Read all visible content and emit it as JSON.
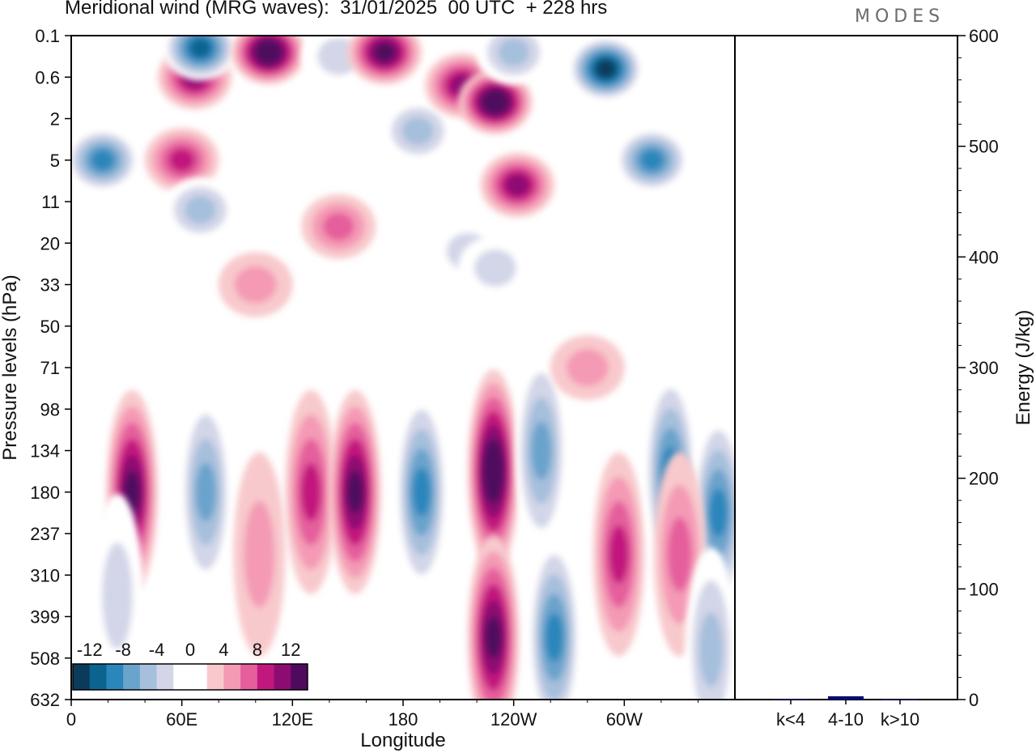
{
  "header": {
    "title": "Meridional wind (MRG waves):  31/01/2025  00 UTC  + 228 hrs",
    "brand": "MODES"
  },
  "chart_data": [
    {
      "type": "heatmap",
      "xlabel": "Longitude",
      "ylabel": "Pressure levels (hPa)",
      "x_tick_labels": [
        "0",
        "60E",
        "120E",
        "180",
        "120W",
        "60W"
      ],
      "y_tick_labels": [
        "0.1",
        "0.6",
        "2",
        "5",
        "11",
        "20",
        "33",
        "50",
        "71",
        "98",
        "134",
        "180",
        "237",
        "310",
        "399",
        "508",
        "632"
      ],
      "colorbar": {
        "labels": [
          "-12",
          "-8",
          "-4",
          "0",
          "4",
          "8",
          "12"
        ],
        "colors": [
          "#0b3b5c",
          "#0d6390",
          "#2a86bb",
          "#6aa3cc",
          "#a6bfdc",
          "#d3d6e8",
          "#ffffff",
          "#ffffff",
          "#f8c9cc",
          "#f49ab5",
          "#e55f9c",
          "#c2187e",
          "#8c0c72",
          "#4f0a5f"
        ]
      },
      "features": [
        {
          "lon": 17,
          "level": 3.0,
          "value": -10
        },
        {
          "lon": 60,
          "level": 3.0,
          "value": 8
        },
        {
          "lon": 70,
          "level": 4.2,
          "value": -6
        },
        {
          "lon": 67,
          "level": 1.0,
          "value": 9
        },
        {
          "lon": 70,
          "level": 0.3,
          "value": -12
        },
        {
          "lon": 107,
          "level": 0.4,
          "value": 14
        },
        {
          "lon": 145,
          "level": 0.5,
          "value": -4
        },
        {
          "lon": 170,
          "level": 0.4,
          "value": 11
        },
        {
          "lon": 188,
          "level": 2.3,
          "value": -5
        },
        {
          "lon": 212,
          "level": 1.2,
          "value": 9
        },
        {
          "lon": 230,
          "level": 1.6,
          "value": 14
        },
        {
          "lon": 240,
          "level": 0.4,
          "value": -6
        },
        {
          "lon": 242,
          "level": 3.6,
          "value": 10
        },
        {
          "lon": 290,
          "level": 0.8,
          "value": -14
        },
        {
          "lon": 315,
          "level": 3.0,
          "value": -10
        },
        {
          "lon": 145,
          "level": 4.6,
          "value": 6
        },
        {
          "lon": 215,
          "level": 5.2,
          "value": -4
        },
        {
          "lon": 33,
          "level": 11.0,
          "value": 11
        },
        {
          "lon": 73,
          "level": 11.0,
          "value": -7
        },
        {
          "lon": 130,
          "level": 11.0,
          "value": 8
        },
        {
          "lon": 154,
          "level": 11.0,
          "value": 11
        },
        {
          "lon": 190,
          "level": 11.0,
          "value": -9
        },
        {
          "lon": 229,
          "level": 10.5,
          "value": 14
        },
        {
          "lon": 255,
          "level": 10.0,
          "value": -7
        },
        {
          "lon": 297,
          "level": 12.5,
          "value": 8
        },
        {
          "lon": 325,
          "level": 10.5,
          "value": -9
        },
        {
          "lon": 351,
          "level": 11.5,
          "value": -10
        },
        {
          "lon": 330,
          "level": 12.5,
          "value": 5
        },
        {
          "lon": 229,
          "level": 14.5,
          "value": 12
        },
        {
          "lon": 262,
          "level": 14.5,
          "value": -9
        },
        {
          "lon": 347,
          "level": 14.8,
          "value": -6
        },
        {
          "lon": 25,
          "level": 13.5,
          "value": -4
        },
        {
          "lon": 102,
          "level": 12.5,
          "value": 4
        },
        {
          "lon": 280,
          "level": 8.0,
          "value": 4
        },
        {
          "lon": 100,
          "level": 6.0,
          "value": 3
        },
        {
          "lon": 230,
          "level": 5.6,
          "value": -3
        }
      ]
    },
    {
      "type": "bar",
      "categories": [
        "k<4",
        "4-10",
        "k>10"
      ],
      "values": [
        0.5,
        3,
        0.3
      ],
      "ylabel": "Energy (J/kg)",
      "ylim": [
        0,
        600
      ],
      "y_tick_labels": [
        "0",
        "100",
        "200",
        "300",
        "400",
        "500",
        "600"
      ],
      "color": "#0a0a7a"
    }
  ]
}
